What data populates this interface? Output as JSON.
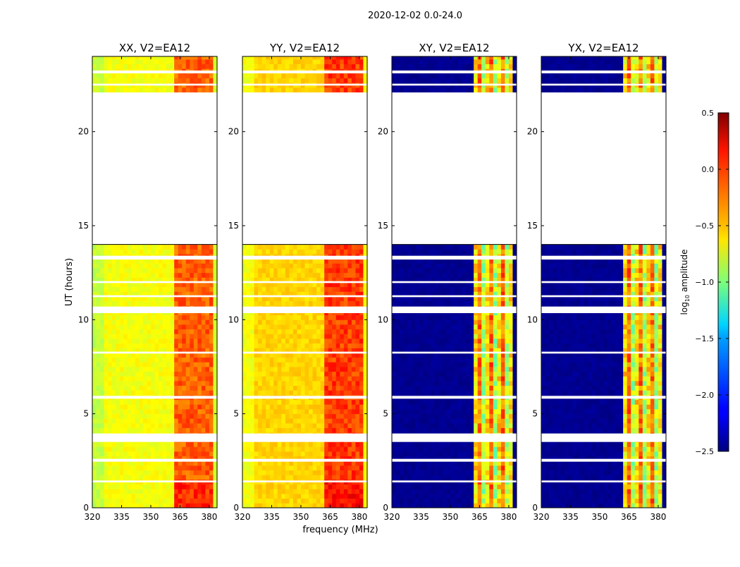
{
  "chart_data": {
    "type": "heatmap",
    "title": "2020-12-02 0.0-24.0",
    "xlabel": "frequency (MHz)",
    "ylabel": "UT (hours)",
    "xlim": [
      320,
      384
    ],
    "ylim": [
      0,
      24
    ],
    "xticks": [
      320,
      335,
      350,
      365,
      380
    ],
    "yticks": [
      0,
      5,
      10,
      15,
      20
    ],
    "time_bin_hours": 0.25,
    "freq_bin_mhz": 2,
    "data_coverage_hours": [
      [
        0,
        14.0
      ],
      [
        22.1,
        24
      ]
    ],
    "flagged_gaps_hours": [
      [
        23.1,
        23.25
      ],
      [
        22.45,
        22.55
      ],
      [
        13.2,
        13.4
      ],
      [
        11.95,
        12.05
      ],
      [
        11.2,
        11.3
      ],
      [
        10.35,
        10.7
      ],
      [
        8.2,
        8.3
      ],
      [
        5.8,
        5.95
      ],
      [
        3.5,
        3.95
      ],
      [
        2.45,
        2.6
      ],
      [
        1.35,
        1.45
      ]
    ],
    "panels": [
      {
        "title": "XX, V2=EA12",
        "low_band_level": -0.65,
        "high_band_level": -0.15,
        "high_band_mhz": [
          362,
          381
        ],
        "edge_level": -0.75,
        "pattern": "smooth"
      },
      {
        "title": "YY, V2=EA12",
        "low_band_level": -0.5,
        "high_band_level": -0.05,
        "high_band_mhz": [
          362,
          381
        ],
        "edge_level": -0.6,
        "pattern": "smooth"
      },
      {
        "title": "XY, V2=EA12",
        "low_band_level": -2.45,
        "high_band_level": -0.55,
        "high_band_mhz": [
          362,
          381
        ],
        "edge_level": -2.45,
        "pattern": "striped"
      },
      {
        "title": "YX, V2=EA12",
        "low_band_level": -2.45,
        "high_band_level": -0.55,
        "high_band_mhz": [
          362,
          381
        ],
        "edge_level": -2.45,
        "pattern": "striped"
      }
    ],
    "colorbar": {
      "label": "log10 amplitude",
      "label_base": "log",
      "label_sub": "10",
      "label_rest": " amplitude",
      "range": [
        -2.5,
        0.5
      ],
      "ticks": [
        "0.5",
        "0.0",
        "−0.5",
        "−1.0",
        "−1.5",
        "−2.0",
        "−2.5"
      ],
      "tick_values": [
        0.5,
        0.0,
        -0.5,
        -1.0,
        -1.5,
        -2.0,
        -2.5
      ],
      "colormap": "jet"
    }
  }
}
